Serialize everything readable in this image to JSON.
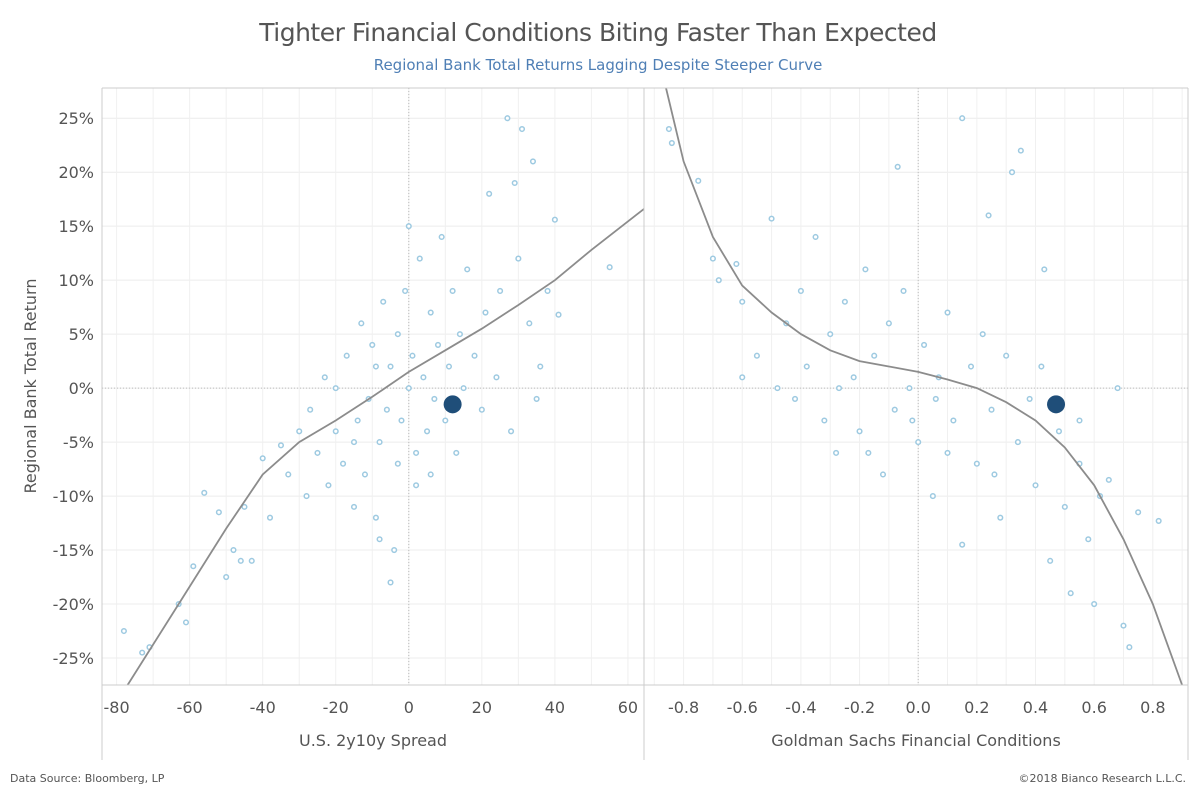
{
  "title": "Tighter Financial Conditions Biting Faster Than Expected",
  "subtitle": "Regional Bank Total Returns Lagging Despite Steeper Curve",
  "footer": {
    "source": "Data Source: Bloomberg, LP",
    "copyright": "©2018 Bianco Research L.L.C."
  },
  "colors": {
    "points": "#9ecae1",
    "highlight": "#1f4e79",
    "fit_line": "#8c8c8c",
    "title": "#555555",
    "subtitle": "#4f7fb5"
  },
  "chart_data": [
    {
      "type": "scatter",
      "xlabel": "U.S. 2y10y Spread",
      "ylabel": "Regional  Bank Total Return",
      "xlim": [
        -84,
        64.4
      ],
      "ylim": [
        -27.5,
        27.8
      ],
      "x_ticks": [
        "-80",
        "-60",
        "-40",
        "-20",
        "0",
        "20",
        "40",
        "60"
      ],
      "x_tick_values": [
        -80,
        -60,
        -40,
        -20,
        0,
        20,
        40,
        60
      ],
      "y_ticks": [
        "25%",
        "20%",
        "15%",
        "10%",
        "5%",
        "0%",
        "-5%",
        "-10%",
        "-15%",
        "-20%",
        "-25%"
      ],
      "y_tick_values": [
        25,
        20,
        15,
        10,
        5,
        0,
        -5,
        -10,
        -15,
        -20,
        -25
      ],
      "grid": true,
      "points": [
        [
          -78,
          -22.5
        ],
        [
          -73,
          -24.5
        ],
        [
          -71,
          -24
        ],
        [
          -63,
          -20
        ],
        [
          -61,
          -21.7
        ],
        [
          -59,
          -16.5
        ],
        [
          -56,
          -9.7
        ],
        [
          -52,
          -11.5
        ],
        [
          -50,
          -17.5
        ],
        [
          -48,
          -15
        ],
        [
          -46,
          -16
        ],
        [
          -45,
          -11
        ],
        [
          -43,
          -16
        ],
        [
          -40,
          -6.5
        ],
        [
          -38,
          -12
        ],
        [
          -35,
          -5.3
        ],
        [
          -33,
          -8
        ],
        [
          -30,
          -4
        ],
        [
          -28,
          -10
        ],
        [
          -27,
          -2
        ],
        [
          -25,
          -6
        ],
        [
          -23,
          1
        ],
        [
          -22,
          -9
        ],
        [
          -20,
          -4
        ],
        [
          -18,
          -7
        ],
        [
          -17,
          3
        ],
        [
          -15,
          -11
        ],
        [
          -14,
          -3
        ],
        [
          -13,
          6
        ],
        [
          -12,
          -8
        ],
        [
          -11,
          -1
        ],
        [
          -10,
          4
        ],
        [
          -9,
          -12
        ],
        [
          -8,
          -5
        ],
        [
          -7,
          8
        ],
        [
          -6,
          -2
        ],
        [
          -5,
          2
        ],
        [
          -4,
          -15
        ],
        [
          -3,
          5
        ],
        [
          -2,
          -3
        ],
        [
          -1,
          9
        ],
        [
          0,
          0
        ],
        [
          1,
          3
        ],
        [
          2,
          -6
        ],
        [
          3,
          12
        ],
        [
          4,
          1
        ],
        [
          5,
          -4
        ],
        [
          6,
          7
        ],
        [
          7,
          -1
        ],
        [
          8,
          4
        ],
        [
          9,
          14
        ],
        [
          10,
          -3
        ],
        [
          11,
          2
        ],
        [
          12,
          9
        ],
        [
          13,
          -6
        ],
        [
          14,
          5
        ],
        [
          15,
          0
        ],
        [
          16,
          11
        ],
        [
          18,
          3
        ],
        [
          20,
          -2
        ],
        [
          21,
          7
        ],
        [
          22,
          18
        ],
        [
          24,
          1
        ],
        [
          25,
          9
        ],
        [
          27,
          25
        ],
        [
          28,
          -4
        ],
        [
          29,
          19
        ],
        [
          30,
          12
        ],
        [
          31,
          24
        ],
        [
          33,
          6
        ],
        [
          34,
          21
        ],
        [
          35,
          -1
        ],
        [
          36,
          2
        ],
        [
          38,
          9
        ],
        [
          40,
          15.6
        ],
        [
          41,
          6.8
        ],
        [
          55,
          11.2
        ],
        [
          -5,
          -18
        ],
        [
          -8,
          -14
        ],
        [
          2,
          -9
        ],
        [
          0,
          15
        ],
        [
          -15,
          -5
        ],
        [
          -3,
          -7
        ],
        [
          6,
          -8
        ],
        [
          -9,
          2
        ],
        [
          -20,
          0
        ]
      ],
      "highlight": [
        12,
        -1.5
      ],
      "fit_curve": [
        [
          -77,
          -27.5
        ],
        [
          -63,
          -20
        ],
        [
          -50,
          -13
        ],
        [
          -40,
          -8
        ],
        [
          -30,
          -5
        ],
        [
          -20,
          -3
        ],
        [
          -10,
          -0.8
        ],
        [
          0,
          1.5
        ],
        [
          10,
          3.5
        ],
        [
          20,
          5.5
        ],
        [
          30,
          7.7
        ],
        [
          40,
          10
        ],
        [
          50,
          12.8
        ],
        [
          64.4,
          16.6
        ]
      ]
    },
    {
      "type": "scatter",
      "xlabel": "Goldman Sachs Financial Conditions",
      "ylabel": "",
      "xlim": [
        -0.935,
        0.92
      ],
      "ylim": [
        -27.5,
        27.8
      ],
      "x_ticks": [
        "-0.8",
        "-0.6",
        "-0.4",
        "-0.2",
        "0.0",
        "0.2",
        "0.4",
        "0.6",
        "0.8"
      ],
      "x_tick_values": [
        -0.8,
        -0.6,
        -0.4,
        -0.2,
        0,
        0.2,
        0.4,
        0.6,
        0.8
      ],
      "grid": true,
      "points": [
        [
          -0.85,
          24
        ],
        [
          -0.84,
          22.7
        ],
        [
          -0.75,
          19.2
        ],
        [
          -0.7,
          12
        ],
        [
          -0.68,
          10
        ],
        [
          -0.62,
          11.5
        ],
        [
          -0.6,
          8
        ],
        [
          -0.55,
          3
        ],
        [
          -0.5,
          15.7
        ],
        [
          -0.48,
          0
        ],
        [
          -0.45,
          6
        ],
        [
          -0.42,
          -1
        ],
        [
          -0.4,
          9
        ],
        [
          -0.38,
          2
        ],
        [
          -0.35,
          14
        ],
        [
          -0.32,
          -3
        ],
        [
          -0.3,
          5
        ],
        [
          -0.28,
          -6
        ],
        [
          -0.25,
          8
        ],
        [
          -0.22,
          1
        ],
        [
          -0.2,
          -4
        ],
        [
          -0.18,
          11
        ],
        [
          -0.15,
          3
        ],
        [
          -0.12,
          -8
        ],
        [
          -0.1,
          6
        ],
        [
          -0.08,
          -2
        ],
        [
          -0.05,
          9
        ],
        [
          -0.03,
          0
        ],
        [
          0,
          -5
        ],
        [
          0.02,
          4
        ],
        [
          0.05,
          -10
        ],
        [
          0.07,
          1
        ],
        [
          0.1,
          7
        ],
        [
          0.12,
          -3
        ],
        [
          0.15,
          25
        ],
        [
          0.15,
          -14.5
        ],
        [
          0.18,
          2
        ],
        [
          0.2,
          -7
        ],
        [
          0.22,
          5
        ],
        [
          0.25,
          -2
        ],
        [
          0.28,
          -12
        ],
        [
          0.3,
          3
        ],
        [
          0.32,
          20
        ],
        [
          0.34,
          -5
        ],
        [
          0.35,
          22
        ],
        [
          0.38,
          -1
        ],
        [
          0.4,
          -9
        ],
        [
          0.42,
          2
        ],
        [
          0.45,
          -16
        ],
        [
          0.48,
          -4
        ],
        [
          0.5,
          -11
        ],
        [
          0.52,
          -19
        ],
        [
          0.55,
          -7
        ],
        [
          0.58,
          -14
        ],
        [
          0.6,
          -20
        ],
        [
          0.62,
          -10
        ],
        [
          0.65,
          -8.5
        ],
        [
          0.68,
          0
        ],
        [
          0.7,
          -22
        ],
        [
          0.72,
          -24
        ],
        [
          0.75,
          -11.5
        ],
        [
          0.82,
          -12.3
        ],
        [
          -0.07,
          20.5
        ],
        [
          0.06,
          -1
        ],
        [
          -0.17,
          -6
        ],
        [
          0.24,
          16
        ],
        [
          0.1,
          -6
        ],
        [
          -0.02,
          -3
        ],
        [
          0.26,
          -8
        ],
        [
          -0.27,
          0
        ],
        [
          -0.6,
          1
        ],
        [
          0.43,
          11
        ],
        [
          0.55,
          -3
        ]
      ],
      "highlight": [
        0.47,
        -1.5
      ],
      "fit_curve": [
        [
          -0.86,
          27.8
        ],
        [
          -0.8,
          21
        ],
        [
          -0.7,
          14
        ],
        [
          -0.6,
          9.5
        ],
        [
          -0.5,
          7
        ],
        [
          -0.4,
          5
        ],
        [
          -0.3,
          3.5
        ],
        [
          -0.2,
          2.5
        ],
        [
          -0.1,
          2
        ],
        [
          0,
          1.5
        ],
        [
          0.1,
          0.8
        ],
        [
          0.2,
          0
        ],
        [
          0.3,
          -1.3
        ],
        [
          0.4,
          -3
        ],
        [
          0.5,
          -5.5
        ],
        [
          0.6,
          -9
        ],
        [
          0.7,
          -14
        ],
        [
          0.8,
          -20
        ],
        [
          0.9,
          -27.5
        ]
      ]
    }
  ]
}
